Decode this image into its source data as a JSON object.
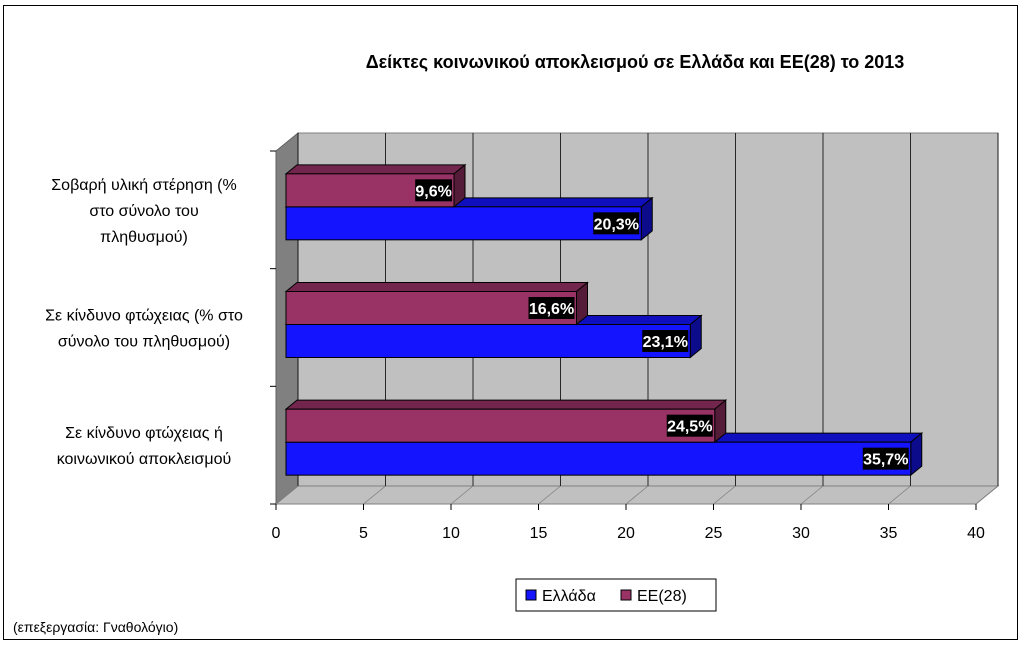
{
  "chart_data": {
    "type": "bar",
    "orientation": "horizontal",
    "three_d": true,
    "title": "Δείκτες κοινωνικού αποκλεισμού σε Ελλάδα και ΕΕ(28) το 2013",
    "categories": [
      [
        "Σοβαρή υλική στέρηση (%",
        "στο σύνολο του",
        "πληθυσμού)"
      ],
      [
        "Σε κίνδυνο φτώχειας (% στο",
        "σύνολο του πληθυσμού)"
      ],
      [
        "Σε κίνδυνο φτώχειας ή",
        "κοινωνικού αποκλεισμού"
      ]
    ],
    "series": [
      {
        "name": "Ελλάδα",
        "values": [
          20.3,
          23.1,
          35.7
        ],
        "labels": [
          "20,3%",
          "23,1%",
          "35,7%"
        ],
        "color": "#1414ff"
      },
      {
        "name": "ΕΕ(28)",
        "values": [
          9.6,
          16.6,
          24.5
        ],
        "labels": [
          "9,6%",
          "16,6%",
          "24,5%"
        ],
        "color": "#993366"
      }
    ],
    "xlim": [
      0,
      40
    ],
    "xticks": [
      "0",
      "5",
      "10",
      "15",
      "20",
      "25",
      "30",
      "35",
      "40"
    ],
    "grid": true,
    "plot_background": "#c0c0c0",
    "legend_position": "bottom"
  },
  "note": "(επεξεργασία: Γναθολόγιο)"
}
